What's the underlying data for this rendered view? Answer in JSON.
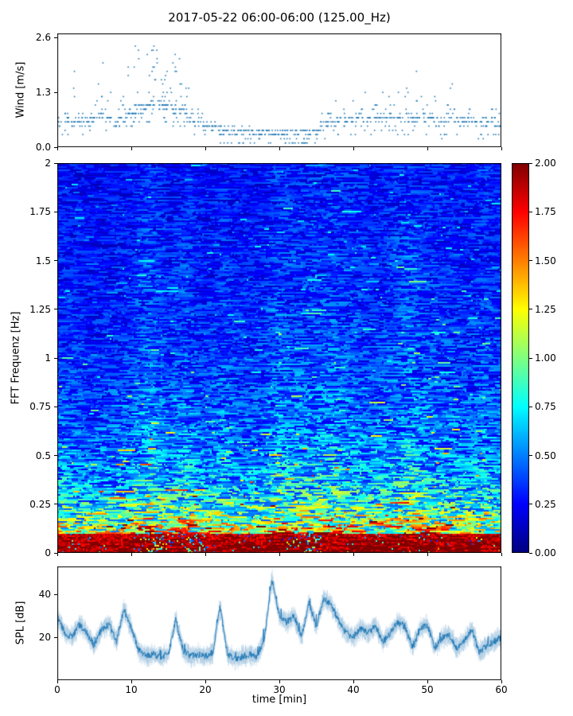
{
  "figure": {
    "title": "2017-05-22 06:00-06:00 (125.00_Hz)",
    "xlabel": "time [min]",
    "x_ticks": [
      0,
      10,
      20,
      30,
      40,
      50,
      60
    ],
    "x_tick_labels": [
      "0",
      "10",
      "20",
      "30",
      "40",
      "50",
      "60"
    ],
    "background": "#ffffff",
    "accent_color": "#1f77b4"
  },
  "chart_data": [
    {
      "id": "wind",
      "type": "scatter",
      "ylabel": "Wind [m/s]",
      "ylim": [
        0,
        2.7
      ],
      "yticks": [
        0.0,
        1.3,
        2.6
      ],
      "ytick_labels": [
        "0.0",
        "1.3",
        "2.6"
      ],
      "xlim": [
        0,
        60
      ],
      "marker_color": "#1f77b4",
      "value_quantum": 0.1,
      "start_min": 0,
      "step_min": 1,
      "band_center": [
        0.6,
        0.6,
        0.6,
        0.6,
        0.6,
        0.65,
        0.7,
        0.65,
        0.6,
        0.6,
        0.8,
        0.9,
        0.95,
        1.0,
        1.0,
        0.95,
        0.9,
        0.85,
        0.7,
        0.6,
        0.5,
        0.45,
        0.4,
        0.38,
        0.36,
        0.35,
        0.35,
        0.34,
        0.33,
        0.33,
        0.32,
        0.3,
        0.3,
        0.3,
        0.32,
        0.35,
        0.55,
        0.6,
        0.62,
        0.6,
        0.62,
        0.65,
        0.65,
        0.68,
        0.7,
        0.7,
        0.68,
        0.7,
        0.68,
        0.7,
        0.68,
        0.65,
        0.62,
        0.65,
        0.6,
        0.6,
        0.6,
        0.58,
        0.55,
        0.6,
        0.58
      ],
      "band_max": [
        0.9,
        0.85,
        2.3,
        0.9,
        0.85,
        1.4,
        2.6,
        1.5,
        0.95,
        1.2,
        2.0,
        2.5,
        2.45,
        2.5,
        2.2,
        2.0,
        2.4,
        2.3,
        1.6,
        1.0,
        0.9,
        0.7,
        0.6,
        0.55,
        0.5,
        0.5,
        0.5,
        0.45,
        0.5,
        0.45,
        0.45,
        0.4,
        0.4,
        0.4,
        0.45,
        0.6,
        0.9,
        1.0,
        1.1,
        0.95,
        1.2,
        1.0,
        1.3,
        1.1,
        1.4,
        1.5,
        1.3,
        1.6,
        1.4,
        1.9,
        1.3,
        1.2,
        1.0,
        1.9,
        0.95,
        0.85,
        0.9,
        0.8,
        0.75,
        0.9,
        0.8
      ]
    },
    {
      "id": "spectrogram",
      "type": "heatmap",
      "ylabel": "FFT Frequenz [Hz]",
      "ylim": [
        0,
        2
      ],
      "yticks": [
        0,
        0.25,
        0.5,
        0.75,
        1,
        1.25,
        1.5,
        1.75,
        2
      ],
      "ytick_labels": [
        "0",
        "0.25",
        "0.5",
        "0.75",
        "1",
        "1.25",
        "1.5",
        "1.75",
        "2"
      ],
      "xlim": [
        0,
        60
      ],
      "colormap": "jet",
      "value_range": [
        0,
        2
      ],
      "colorbar": {
        "ticks": [
          0,
          0.25,
          0.5,
          0.75,
          1,
          1.25,
          1.5,
          1.75,
          2
        ],
        "tick_labels": [
          "0.00",
          "0.25",
          "0.50",
          "0.75",
          "1.00",
          "1.25",
          "1.50",
          "1.75",
          "2.00"
        ]
      },
      "freq_profile": {
        "freq_hz": [
          0,
          0.03,
          0.06,
          0.09,
          0.125,
          0.1875,
          0.25,
          0.3125,
          0.375,
          0.5,
          0.625,
          0.75,
          1.0,
          1.25,
          1.5,
          1.75,
          2.0
        ],
        "mean_value": [
          2.0,
          2.0,
          1.6,
          1.2,
          1.0,
          0.85,
          0.72,
          0.62,
          0.55,
          0.47,
          0.42,
          0.38,
          0.33,
          0.3,
          0.28,
          0.26,
          0.25
        ]
      },
      "time_modulation": {
        "start_min": 0,
        "step_min": 2.5,
        "factors": [
          1.0,
          0.95,
          0.9,
          0.95,
          1.0,
          1.25,
          1.0,
          1.15,
          0.95,
          1.1,
          0.95,
          1.0,
          1.2,
          1.1,
          1.15,
          1.2,
          1.1,
          1.0,
          1.1,
          1.25,
          1.1,
          1.05,
          1.0,
          1.1,
          1.0
        ]
      },
      "texture": "horizontal streaky multiplicative noise; solid red band below 0.06 Hz with occasional gaps near 13, 18.5 and 34 min"
    },
    {
      "id": "spl",
      "type": "line",
      "ylabel": "SPL [dB]",
      "ylim": [
        0,
        53
      ],
      "yticks": [
        20,
        40
      ],
      "ytick_labels": [
        "20",
        "40"
      ],
      "xlim": [
        0,
        60
      ],
      "line_color": "#1f77b4",
      "start_min": 0,
      "step_min": 1,
      "values": [
        30,
        22,
        20,
        26,
        22,
        16,
        24,
        26,
        18,
        33,
        24,
        14,
        11,
        12,
        11,
        12,
        28,
        14,
        11,
        12,
        11,
        13,
        34,
        12,
        10,
        11,
        12,
        11,
        20,
        47,
        30,
        27,
        30,
        20,
        36,
        25,
        38,
        35,
        28,
        22,
        20,
        24,
        22,
        25,
        18,
        22,
        27,
        25,
        15,
        24,
        26,
        15,
        20,
        21,
        15,
        18,
        24,
        13,
        16,
        18,
        20
      ]
    }
  ]
}
